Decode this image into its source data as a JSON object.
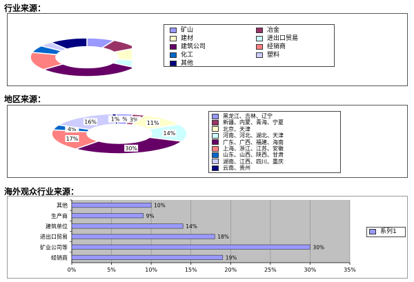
{
  "headings": {
    "industry": "行业来源：",
    "region": "地区来源：",
    "overseas": "海外观众行业来源："
  },
  "chart_data": [
    {
      "type": "pie",
      "title": "行业来源：",
      "categories": [
        "矿山",
        "冶金",
        "建材",
        "进出口贸易",
        "建筑公司",
        "经销商",
        "化工",
        "塑料",
        "其他"
      ],
      "values": [
        8,
        9,
        11,
        6,
        30,
        15,
        6,
        4,
        11
      ],
      "colors": [
        "#9999ff",
        "#993366",
        "#ffffcc",
        "#ccffff",
        "#660066",
        "#ff8080",
        "#0066cc",
        "#ccccff",
        "#000080"
      ],
      "labels_shown": false,
      "legend_position": "right"
    },
    {
      "type": "pie",
      "title": "地区来源：",
      "categories": [
        "黑龙江、吉林、辽宁",
        "新疆、内蒙、青海、宁夏",
        "北京、天津",
        "河南、河北、湖北、天津",
        "广东、广西、福建、海南",
        "上海、浙江、江苏、安徽",
        "山东、山西、陕西、甘肃",
        "湖南、江西、四川、重庆",
        "云南、贵州"
      ],
      "values": [
        4,
        3,
        11,
        14,
        30,
        17,
        4,
        16,
        1
      ],
      "labels": [
        "4%",
        "3%",
        "11%",
        "14%",
        "30%",
        "17%",
        "4%",
        "16%",
        "1%"
      ],
      "colors": [
        "#9999ff",
        "#993366",
        "#ffffcc",
        "#ccffff",
        "#660066",
        "#ff8080",
        "#0066cc",
        "#ccccff",
        "#000080"
      ],
      "legend_position": "right"
    },
    {
      "type": "bar",
      "orientation": "horizontal",
      "title": "海外观众行业来源：",
      "categories": [
        "其他",
        "生产商",
        "建筑单位",
        "进出口贸易",
        "矿业公司等",
        "经销商"
      ],
      "series": [
        {
          "name": "系列1",
          "values": [
            10,
            9,
            14,
            18,
            30,
            19
          ]
        }
      ],
      "labels": [
        "10%",
        "9%",
        "14%",
        "18%",
        "30%",
        "19%"
      ],
      "xticks": [
        "0%",
        "5%",
        "10%",
        "15%",
        "20%",
        "25%",
        "30%",
        "35%"
      ],
      "xlim": [
        0,
        35
      ],
      "colors": {
        "bar": "#9999ff",
        "plot_bg": "#c0c0c0"
      },
      "grid": true,
      "legend_position": "right"
    }
  ]
}
